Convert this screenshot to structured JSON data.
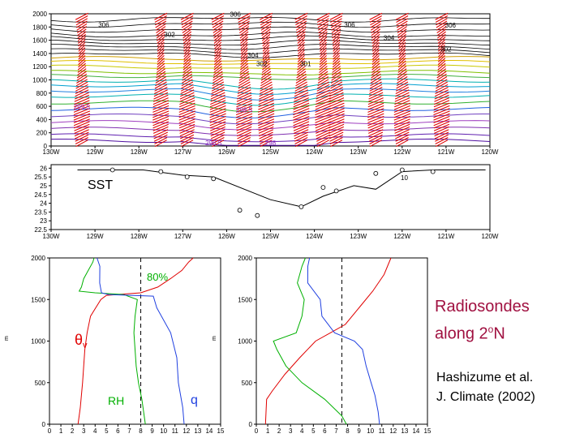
{
  "caption": {
    "title_line1": "Radiosondes",
    "title_line2_prefix": "along 2",
    "title_line2_sup": "o",
    "title_line2_suffix": "N",
    "citation_line1": "Hashizume et al.",
    "citation_line2": "J. Climate (2002)"
  },
  "colors": {
    "theta_v": "#e00000",
    "rh": "#00b000",
    "q": "#2040e0",
    "wind_barb": "#e00000",
    "caption_red": "#a01040"
  },
  "chart_data": [
    {
      "type": "contour",
      "name": "cross-section",
      "x_ticks": [
        "130W",
        "129W",
        "128W",
        "127W",
        "126W",
        "125W",
        "124W",
        "123W",
        "122W",
        "121W",
        "120W"
      ],
      "y_ticks": [
        "0",
        "200",
        "400",
        "600",
        "800",
        "1000",
        "1200",
        "1400",
        "1600",
        "1800",
        "2000"
      ],
      "ylim": [
        0,
        2000
      ],
      "sounding_lon_w": [
        129.3,
        127.5,
        126.9,
        126.2,
        125.6,
        125.1,
        124.3,
        123.8,
        123.5,
        122.6,
        122.0,
        121.1
      ],
      "contour_labels": [
        "306",
        "306",
        "302",
        "304",
        "302",
        "301",
        "306",
        "304",
        "302",
        "306",
        "299.5",
        "298.5",
        "296.5",
        "298"
      ]
    },
    {
      "type": "line",
      "name": "SST",
      "series_label": "SST",
      "x_ticks": [
        "130W",
        "129W",
        "128W",
        "127W",
        "126W",
        "125W",
        "124W",
        "123W",
        "122W",
        "121W",
        "120W"
      ],
      "y_ticks": [
        "26",
        "25.5",
        "25",
        "24.5",
        "24",
        "23.5",
        "23",
        "22.5"
      ],
      "ylim": [
        22.5,
        26.2
      ],
      "points_lon_w": [
        129.4,
        127.9,
        127.0,
        126.3,
        125.0,
        124.3,
        123.8,
        123.1,
        122.6,
        122.0,
        121.3,
        120.1
      ],
      "points_sst": [
        25.9,
        25.9,
        25.6,
        25.5,
        24.2,
        23.8,
        24.4,
        25.0,
        24.8,
        25.8,
        25.9,
        25.9
      ],
      "marker_lon_w": [
        128.6,
        127.5,
        126.9,
        126.3,
        125.7,
        125.3,
        124.3,
        123.8,
        123.5,
        122.6,
        122.0,
        121.3
      ],
      "marker_sst": [
        25.9,
        25.8,
        25.5,
        25.4,
        23.6,
        23.3,
        23.8,
        24.9,
        24.7,
        25.7,
        25.9,
        25.8
      ],
      "annotation": "10"
    },
    {
      "type": "line",
      "name": "sounding-left",
      "x_ticks": [
        "0",
        "1",
        "2",
        "3",
        "4",
        "5",
        "6",
        "7",
        "8",
        "9",
        "10",
        "11",
        "12",
        "13",
        "14",
        "15"
      ],
      "y_ticks": [
        "0",
        "500",
        "1000",
        "1500",
        "2000"
      ],
      "xlim": [
        0,
        15
      ],
      "ylim": [
        0,
        2000
      ],
      "y_label": "m",
      "dashed_x": 8,
      "labels": {
        "theta": "θ",
        "theta_sub": "v",
        "rh": "RH",
        "q": "q",
        "pct": "80%"
      },
      "series": [
        {
          "name": "θv",
          "y": [
            0,
            100,
            200,
            350,
            500,
            700,
            900,
            1100,
            1300,
            1500,
            1550,
            1580,
            1650,
            1750,
            1850,
            1950,
            2000
          ],
          "x": [
            2.5,
            2.6,
            2.7,
            2.8,
            2.9,
            3.0,
            3.1,
            3.3,
            3.6,
            4.5,
            5.0,
            8.0,
            9.5,
            10.6,
            11.6,
            12.2,
            12.6
          ]
        },
        {
          "name": "RH",
          "y": [
            0,
            300,
            500,
            700,
            900,
            1100,
            1300,
            1500,
            1560,
            1580,
            1600,
            1650,
            1750,
            1850,
            1950,
            2000
          ],
          "x": [
            8.4,
            8.1,
            7.8,
            7.6,
            7.5,
            7.4,
            7.5,
            7.7,
            6.5,
            4.0,
            2.6,
            2.8,
            3.0,
            3.4,
            3.8,
            3.9
          ]
        },
        {
          "name": "q",
          "y": [
            0,
            200,
            500,
            800,
            1100,
            1400,
            1540,
            1560,
            1580,
            1700,
            1800,
            1900,
            2000
          ],
          "x": [
            11.8,
            11.6,
            11.4,
            11.1,
            10.6,
            9.5,
            9.0,
            5.2,
            4.6,
            4.3,
            4.5,
            4.4,
            4.1
          ]
        }
      ]
    },
    {
      "type": "line",
      "name": "sounding-right",
      "x_ticks": [
        "0",
        "1",
        "2",
        "3",
        "4",
        "5",
        "6",
        "7",
        "8",
        "9",
        "10",
        "11",
        "12",
        "13",
        "14",
        "15"
      ],
      "y_ticks": [
        "0",
        "500",
        "1000",
        "1500",
        "2000"
      ],
      "xlim": [
        0,
        15
      ],
      "ylim": [
        0,
        2000
      ],
      "y_label": "m",
      "dashed_x": 7.5,
      "series": [
        {
          "name": "θv",
          "y": [
            0,
            300,
            400,
            600,
            800,
            1000,
            1100,
            1200,
            1400,
            1600,
            1800,
            2000
          ],
          "x": [
            0.8,
            0.9,
            1.4,
            2.5,
            3.8,
            5.2,
            6.5,
            7.8,
            9.0,
            10.2,
            11.2,
            11.8
          ]
        },
        {
          "name": "RH",
          "y": [
            0,
            100,
            300,
            500,
            700,
            900,
            1000,
            1100,
            1300,
            1500,
            1700,
            1900,
            2000
          ],
          "x": [
            7.9,
            7.5,
            6.0,
            4.0,
            2.6,
            1.8,
            1.5,
            3.5,
            4.0,
            4.2,
            3.6,
            4.0,
            4.3
          ]
        },
        {
          "name": "q",
          "y": [
            0,
            150,
            350,
            500,
            700,
            900,
            1000,
            1100,
            1300,
            1500,
            1700,
            1900,
            2000
          ],
          "x": [
            10.8,
            10.6,
            10.5,
            10.0,
            9.6,
            9.4,
            8.5,
            6.9,
            5.8,
            5.5,
            4.6,
            4.5,
            4.6
          ]
        }
      ]
    }
  ]
}
